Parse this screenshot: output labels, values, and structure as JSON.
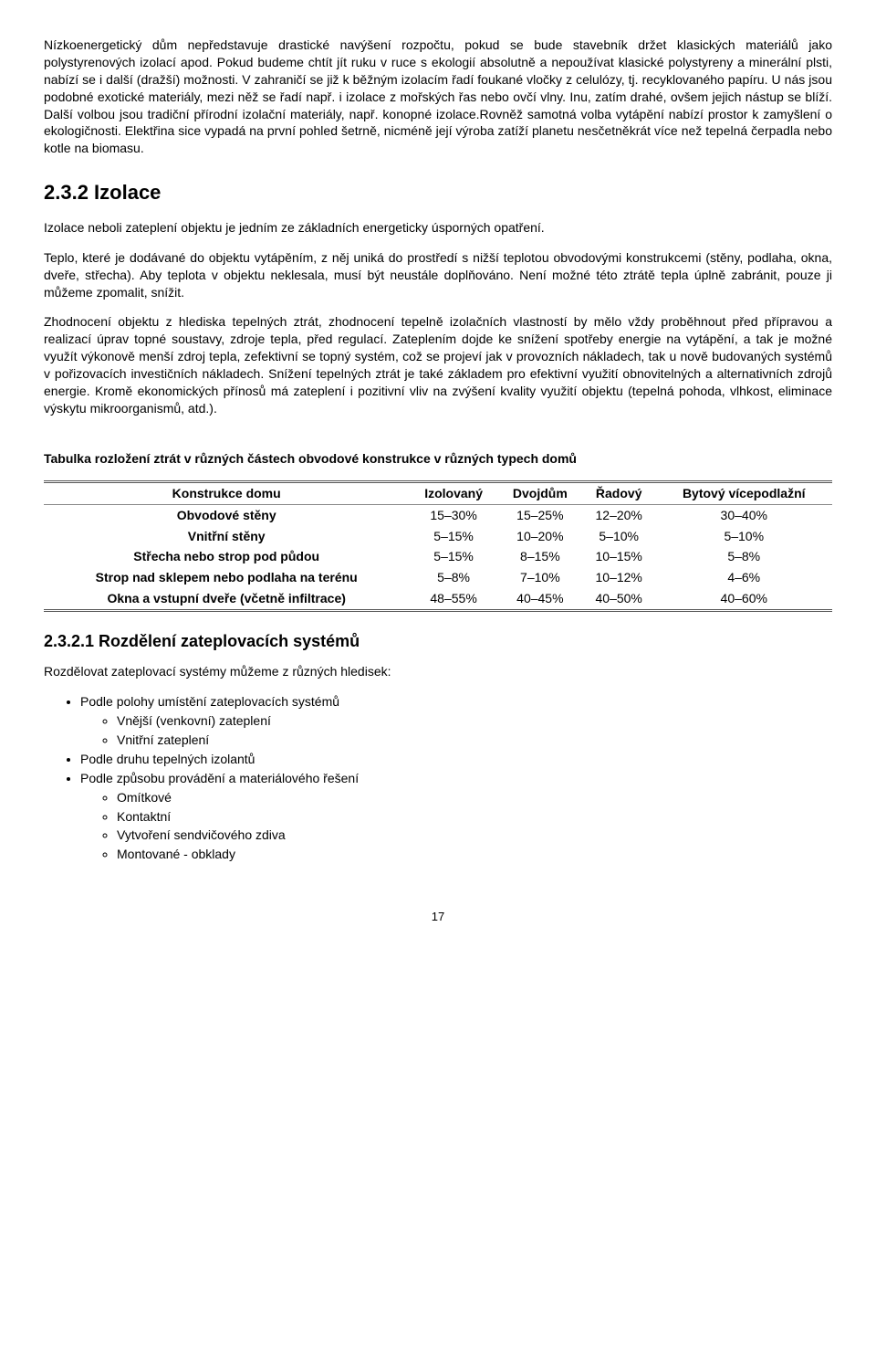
{
  "para1": "Nízkoenergetický dům nepředstavuje drastické navýšení rozpočtu, pokud se bude stavebník držet klasických materiálů jako polystyrenových izolací apod. Pokud budeme chtít jít ruku v ruce s ekologií absolutně a nepoužívat klasické polystyreny a minerální plsti, nabízí se i další (dražší) možnosti. V zahraničí se již k běžným izolacím řadí foukané vločky z celulózy, tj. recyklovaného papíru. U nás jsou podobné exotické materiály, mezi něž se řadí např. i izolace z mořských řas nebo ovčí vlny. Inu, zatím drahé, ovšem jejich nástup se blíží. Další volbou jsou tradiční přírodní izolační materiály, např. konopné izolace.Rovněž samotná volba vytápění nabízí prostor k zamyšlení o ekologičnosti. Elektřina sice vypadá na první pohled šetrně, nicméně její výroba zatíží planetu nesčetněkrát více než tepelná čerpadla nebo kotle na biomasu.",
  "h2": "2.3.2 Izolace",
  "para2": "Izolace neboli zateplení objektu je jedním ze základních energeticky úsporných opatření.",
  "para3": "Teplo, které je dodávané do objektu vytápěním, z něj uniká do prostředí s nižší teplotou obvodovými konstrukcemi (stěny, podlaha, okna, dveře, střecha). Aby teplota v objektu neklesala, musí být neustále doplňováno. Není možné této ztrátě tepla úplně zabránit, pouze ji můžeme zpomalit, snížit.",
  "para4": "Zhodnocení objektu z hlediska tepelných ztrát, zhodnocení tepelně izolačních vlastností by mělo vždy proběhnout před přípravou a realizací úprav topné soustavy, zdroje tepla, před regulací. Zateplením dojde ke snížení spotřeby energie na vytápění, a tak je možné využít výkonově menší zdroj tepla, zefektivní se topný systém, což se projeví jak v provozních nákladech, tak u nově budovaných systémů v pořizovacích investičních nákladech. Snížení tepelných ztrát je také základem pro efektivní využití obnovitelných a alternativních zdrojů energie. Kromě ekonomických přínosů má zateplení i pozitivní vliv na zvýšení kvality využití objektu (tepelná pohoda, vlhkost, eliminace výskytu mikroorganismů, atd.).",
  "tableTitle": "Tabulka rozložení ztrát v různých částech obvodové konstrukce v různých typech domů",
  "table": {
    "headers": [
      "Konstrukce domu",
      "Izolovaný",
      "Dvojdům",
      "Řadový",
      "Bytový vícepodlažní"
    ],
    "rows": [
      [
        "Obvodové stěny",
        "15–30%",
        "15–25%",
        "12–20%",
        "30–40%"
      ],
      [
        "Vnitřní stěny",
        "5–15%",
        "10–20%",
        "5–10%",
        "5–10%"
      ],
      [
        "Střecha nebo strop pod půdou",
        "5–15%",
        "8–15%",
        "10–15%",
        "5–8%"
      ],
      [
        "Strop nad sklepem nebo podlaha na terénu",
        "5–8%",
        "7–10%",
        "10–12%",
        "4–6%"
      ],
      [
        "Okna a vstupní dveře (včetně infiltrace)",
        "48–55%",
        "40–45%",
        "40–50%",
        "40–60%"
      ]
    ]
  },
  "h3": "2.3.2.1 Rozdělení zateplovacích systémů",
  "para5": "Rozdělovat zateplovací systémy můžeme z různých hledisek:",
  "list": {
    "items": [
      {
        "label": "Podle polohy umístění zateplovacích systémů",
        "sub": [
          "Vnější (venkovní) zateplení",
          "Vnitřní zateplení"
        ]
      },
      {
        "label": "Podle druhu tepelných izolantů",
        "sub": []
      },
      {
        "label": "Podle způsobu provádění a materiálového řešení",
        "sub": [
          "Omítkové",
          "Kontaktní",
          "Vytvoření sendvičového zdiva",
          "Montované - obklady"
        ]
      }
    ]
  },
  "pageNumber": "17"
}
